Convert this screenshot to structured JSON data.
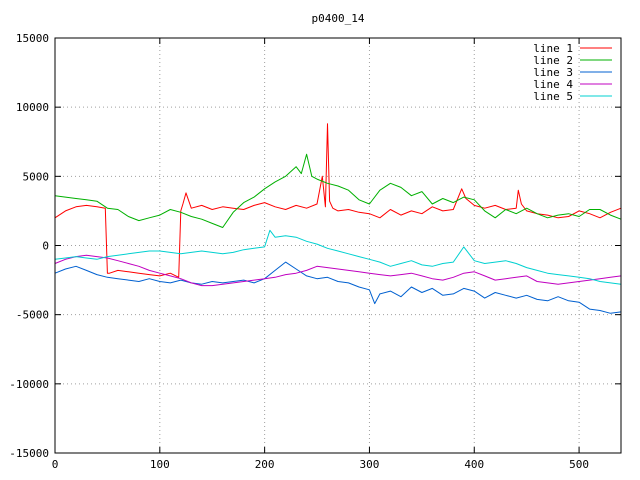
{
  "chart_data": {
    "type": "line",
    "title": "p0400_14",
    "xlabel": "",
    "ylabel": "",
    "xlim": [
      0,
      540
    ],
    "ylim": [
      -15000,
      15000
    ],
    "grid": true,
    "legend_position": "top-right",
    "x_ticks": [
      0,
      100,
      200,
      300,
      400,
      500
    ],
    "y_ticks": [
      -15000,
      -10000,
      -5000,
      0,
      5000,
      10000,
      15000
    ],
    "series": [
      {
        "name": "line 1",
        "color": "#ff0000",
        "x": [
          0,
          10,
          20,
          30,
          40,
          48,
          50,
          52,
          60,
          70,
          80,
          90,
          100,
          110,
          118,
          120,
          122,
          125,
          130,
          140,
          150,
          160,
          170,
          180,
          190,
          200,
          210,
          220,
          230,
          240,
          250,
          255,
          258,
          260,
          262,
          265,
          270,
          280,
          290,
          300,
          310,
          320,
          330,
          340,
          350,
          360,
          370,
          380,
          388,
          392,
          400,
          410,
          420,
          430,
          440,
          442,
          445,
          450,
          460,
          470,
          480,
          490,
          500,
          510,
          520,
          530,
          540
        ],
        "y": [
          2000,
          2500,
          2800,
          2900,
          2800,
          2700,
          -2000,
          -2000,
          -1800,
          -1900,
          -2000,
          -2100,
          -2200,
          -2000,
          -2300,
          2500,
          3000,
          3800,
          2700,
          2900,
          2600,
          2800,
          2700,
          2600,
          2900,
          3100,
          2800,
          2600,
          2900,
          2700,
          3000,
          5000,
          2800,
          8800,
          3200,
          2700,
          2500,
          2600,
          2400,
          2300,
          2000,
          2600,
          2200,
          2500,
          2300,
          2800,
          2500,
          2600,
          4100,
          3400,
          2900,
          2700,
          2900,
          2600,
          2700,
          4000,
          3000,
          2500,
          2300,
          2200,
          2000,
          2100,
          2500,
          2300,
          2000,
          2400,
          2700
        ]
      },
      {
        "name": "line 2",
        "color": "#00b000",
        "x": [
          0,
          10,
          20,
          30,
          40,
          50,
          60,
          70,
          80,
          90,
          100,
          110,
          120,
          130,
          140,
          150,
          160,
          170,
          180,
          190,
          200,
          210,
          220,
          230,
          235,
          240,
          245,
          250,
          260,
          270,
          280,
          290,
          300,
          310,
          320,
          330,
          340,
          350,
          360,
          370,
          380,
          390,
          400,
          410,
          420,
          430,
          440,
          450,
          460,
          470,
          480,
          490,
          500,
          510,
          520,
          530,
          540
        ],
        "y": [
          3600,
          3500,
          3400,
          3300,
          3200,
          2700,
          2600,
          2100,
          1800,
          2000,
          2200,
          2600,
          2400,
          2100,
          1900,
          1600,
          1300,
          2400,
          3100,
          3500,
          4100,
          4600,
          5000,
          5700,
          5200,
          6600,
          5000,
          4800,
          4500,
          4300,
          4000,
          3300,
          3000,
          4000,
          4500,
          4200,
          3600,
          3900,
          3000,
          3400,
          3100,
          3500,
          3300,
          2500,
          2000,
          2600,
          2300,
          2700,
          2300,
          2000,
          2200,
          2300,
          2100,
          2600,
          2600,
          2200,
          1900
        ]
      },
      {
        "name": "line 3",
        "color": "#0060d0",
        "x": [
          0,
          10,
          20,
          30,
          40,
          50,
          60,
          70,
          80,
          90,
          100,
          110,
          120,
          130,
          140,
          150,
          160,
          170,
          180,
          190,
          200,
          210,
          220,
          230,
          240,
          250,
          260,
          270,
          280,
          290,
          300,
          305,
          310,
          320,
          330,
          340,
          350,
          360,
          370,
          380,
          390,
          400,
          410,
          420,
          430,
          440,
          450,
          460,
          470,
          480,
          490,
          500,
          510,
          520,
          530,
          540
        ],
        "y": [
          -2000,
          -1700,
          -1500,
          -1800,
          -2100,
          -2300,
          -2400,
          -2500,
          -2600,
          -2400,
          -2600,
          -2700,
          -2500,
          -2700,
          -2800,
          -2600,
          -2700,
          -2600,
          -2500,
          -2700,
          -2400,
          -1800,
          -1200,
          -1700,
          -2200,
          -2400,
          -2300,
          -2600,
          -2700,
          -3000,
          -3200,
          -4200,
          -3500,
          -3300,
          -3700,
          -3000,
          -3400,
          -3100,
          -3600,
          -3500,
          -3100,
          -3300,
          -3800,
          -3400,
          -3600,
          -3800,
          -3600,
          -3900,
          -4000,
          -3700,
          -4000,
          -4100,
          -4600,
          -4700,
          -4900,
          -4800
        ]
      },
      {
        "name": "line 4",
        "color": "#c000c0",
        "x": [
          0,
          10,
          20,
          30,
          40,
          50,
          60,
          70,
          80,
          90,
          100,
          110,
          120,
          130,
          140,
          150,
          160,
          170,
          180,
          190,
          200,
          210,
          220,
          230,
          240,
          250,
          260,
          270,
          280,
          290,
          300,
          310,
          320,
          330,
          340,
          350,
          360,
          370,
          380,
          390,
          400,
          410,
          420,
          430,
          440,
          450,
          460,
          470,
          480,
          490,
          500,
          510,
          520,
          530,
          540
        ],
        "y": [
          -1300,
          -1000,
          -800,
          -700,
          -800,
          -900,
          -1100,
          -1300,
          -1500,
          -1800,
          -2000,
          -2200,
          -2400,
          -2700,
          -2900,
          -2900,
          -2800,
          -2700,
          -2600,
          -2500,
          -2400,
          -2300,
          -2100,
          -2000,
          -1800,
          -1500,
          -1600,
          -1700,
          -1800,
          -1900,
          -2000,
          -2100,
          -2200,
          -2100,
          -2000,
          -2200,
          -2400,
          -2500,
          -2300,
          -2000,
          -1900,
          -2200,
          -2500,
          -2400,
          -2300,
          -2200,
          -2600,
          -2700,
          -2800,
          -2700,
          -2600,
          -2500,
          -2400,
          -2300,
          -2200
        ]
      },
      {
        "name": "line 5",
        "color": "#00d0d0",
        "x": [
          0,
          10,
          20,
          30,
          40,
          50,
          60,
          70,
          80,
          90,
          100,
          110,
          120,
          130,
          140,
          150,
          160,
          170,
          180,
          190,
          200,
          205,
          210,
          220,
          230,
          240,
          250,
          260,
          270,
          280,
          290,
          300,
          310,
          320,
          330,
          340,
          350,
          360,
          370,
          380,
          390,
          400,
          410,
          420,
          430,
          440,
          450,
          460,
          470,
          480,
          490,
          500,
          510,
          520,
          530,
          540
        ],
        "y": [
          -1000,
          -900,
          -800,
          -900,
          -1000,
          -800,
          -700,
          -600,
          -500,
          -400,
          -400,
          -500,
          -600,
          -500,
          -400,
          -500,
          -600,
          -500,
          -300,
          -200,
          -100,
          1100,
          600,
          700,
          600,
          300,
          100,
          -200,
          -400,
          -600,
          -800,
          -1000,
          -1200,
          -1500,
          -1300,
          -1100,
          -1400,
          -1500,
          -1300,
          -1200,
          -100,
          -1100,
          -1300,
          -1200,
          -1100,
          -1300,
          -1600,
          -1800,
          -2000,
          -2100,
          -2200,
          -2300,
          -2400,
          -2600,
          -2700,
          -2800
        ]
      }
    ]
  }
}
